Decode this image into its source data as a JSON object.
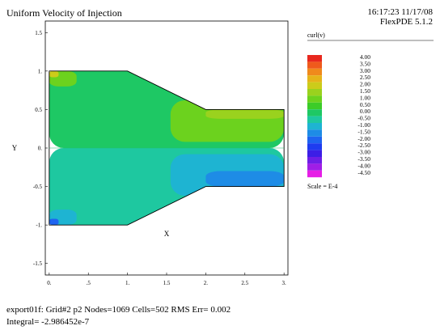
{
  "header": {
    "title": "Uniform Velocity of Injection",
    "timestamp": "16:17:23 11/17/08",
    "software": "FlexPDE 5.1.2"
  },
  "footer": {
    "summary": "export01f:  Grid#2  p2  Nodes=1069 Cells=502 RMS Err= 0.002",
    "integral": "Integral= -2.986452e-7"
  },
  "chart_data": {
    "type": "heatmap",
    "title": "Uniform Velocity of Injection",
    "xlabel": "X",
    "ylabel": "Y",
    "xlim": [
      -0.05,
      3.05
    ],
    "ylim": [
      -1.65,
      1.65
    ],
    "x_ticks": [
      "0.",
      ".5",
      "1.",
      "1.5",
      "2.",
      "2.5",
      "3."
    ],
    "x_tick_values": [
      0,
      0.5,
      1,
      1.5,
      2,
      2.5,
      3
    ],
    "y_ticks": [
      "1.5",
      "1.",
      "0.5",
      "0.",
      "-0.5",
      "-1.",
      "-1.5"
    ],
    "y_tick_values": [
      1.5,
      1,
      0.5,
      0,
      -0.5,
      -1,
      -1.5
    ],
    "domain_outline": [
      [
        0,
        -1
      ],
      [
        1,
        -1
      ],
      [
        2,
        -0.5
      ],
      [
        3,
        -0.5
      ],
      [
        3,
        0.5
      ],
      [
        2,
        0.5
      ],
      [
        1,
        1
      ],
      [
        0,
        1
      ]
    ],
    "legend": {
      "variable": "curl(v)",
      "scale": "Scale = E-4",
      "levels": [
        "4.00",
        "3.50",
        "3.00",
        "2.50",
        "2.00",
        "1.50",
        "1.00",
        "0.50",
        "0.00",
        "-0.50",
        "-1.00",
        "-1.50",
        "-2.00",
        "-2.50",
        "-3.00",
        "-3.50",
        "-4.00",
        "-4.50"
      ],
      "colors": [
        "#e8281e",
        "#ef5a1c",
        "#f08a1c",
        "#e6b41a",
        "#cccc1a",
        "#9ad21e",
        "#6cd21e",
        "#3ccc28",
        "#1ec864",
        "#1ec8a0",
        "#1eb4d2",
        "#1e8ce6",
        "#1e64f0",
        "#1e3cf0",
        "#3c1ee6",
        "#6e1ee6",
        "#a01ee6",
        "#e61ee6"
      ]
    },
    "regions": [
      {
        "level": "0.00",
        "x": [
          0,
          3
        ],
        "y": [
          0,
          1
        ]
      },
      {
        "level": "-0.50",
        "x": [
          0,
          3
        ],
        "y": [
          -1,
          0
        ]
      },
      {
        "level": "1.00",
        "x": [
          1.55,
          3
        ],
        "y": [
          0.08,
          0.62
        ]
      },
      {
        "level": "-1.00",
        "x": [
          1.55,
          3
        ],
        "y": [
          -0.62,
          -0.08
        ]
      },
      {
        "level": "-1.50",
        "x": [
          2,
          3
        ],
        "y": [
          -0.5,
          -0.3
        ]
      },
      {
        "level": "1.50",
        "x": [
          2,
          3
        ],
        "y": [
          0.38,
          0.5
        ]
      },
      {
        "level": "1.00",
        "x": [
          0,
          0.35
        ],
        "y": [
          0.8,
          1
        ]
      },
      {
        "level": "2.00",
        "x": [
          0,
          0.12
        ],
        "y": [
          0.92,
          1
        ]
      },
      {
        "level": "-1.00",
        "x": [
          0,
          0.35
        ],
        "y": [
          -1,
          -0.8
        ]
      },
      {
        "level": "-2.00",
        "x": [
          0,
          0.12
        ],
        "y": [
          -1,
          -0.92
        ]
      }
    ]
  }
}
